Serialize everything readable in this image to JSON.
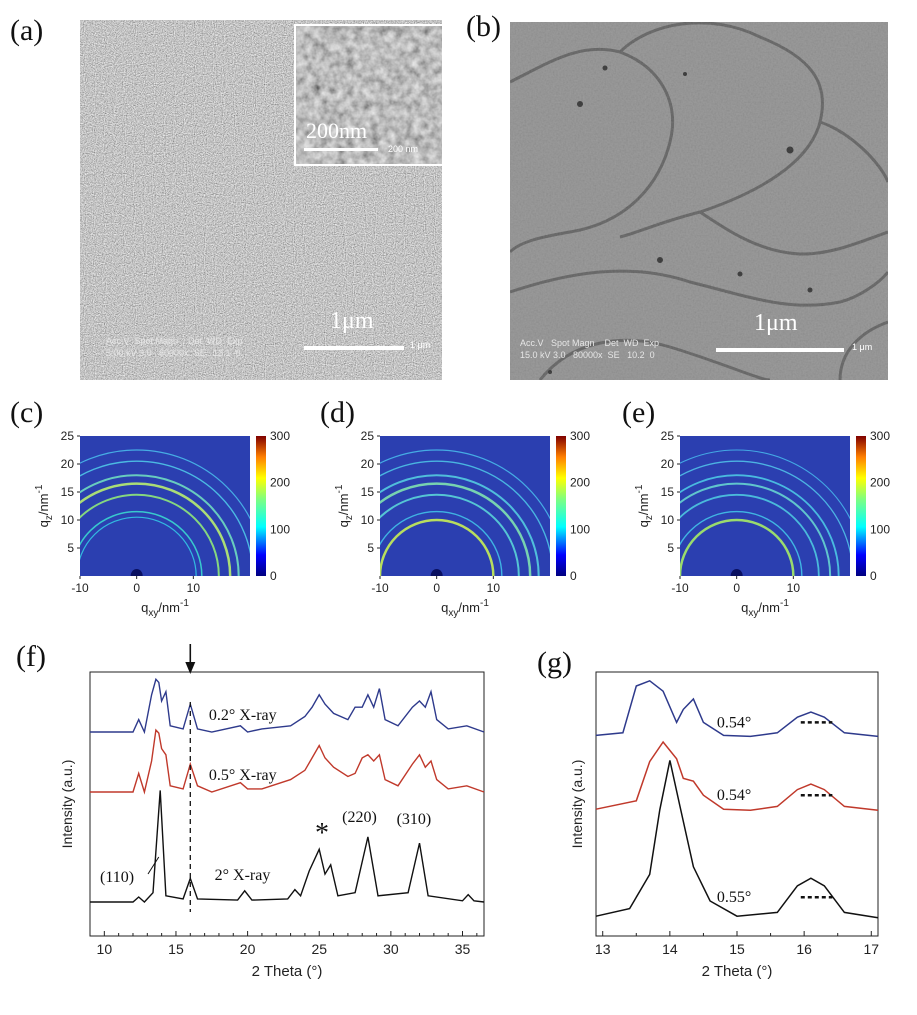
{
  "panels": {
    "a": {
      "letter": "(a)",
      "info_line1": "Acc.V  Spot Magn    Det  WD  Exp",
      "info_line2": "5.00 kV 3.0   60000x  SE   13.1  0",
      "scale_label": "1μm",
      "small_scale": "1 μm",
      "inset_scale_label": "200nm",
      "inset_small_scale": "200 nm"
    },
    "b": {
      "letter": "(b)",
      "info_line1": "Acc.V   Spot Magn    Det  WD  Exp",
      "info_line2": "15.0 kV 3.0   80000x  SE   10.2  0",
      "scale_label": "1μm",
      "small_scale": "1 μm"
    },
    "c": {
      "letter": "(c)"
    },
    "d": {
      "letter": "(d)"
    },
    "e": {
      "letter": "(e)"
    },
    "f": {
      "letter": "(f)"
    },
    "g": {
      "letter": "(g)"
    }
  },
  "gixrd": {
    "ylabel_main": "q",
    "ylabel_sub": "z",
    "xlabel_main": "q",
    "xlabel_sub": "xy",
    "unit": "/nm",
    "unit_sup": "-1",
    "y_ticks": [
      "5",
      "10",
      "15",
      "20",
      "25"
    ],
    "x_ticks": [
      "-10",
      "0",
      "10"
    ],
    "colorbar_ticks": [
      "0",
      "100",
      "200",
      "300"
    ]
  },
  "chart_data": [
    {
      "type": "line",
      "panel": "f",
      "xlabel": "2 Theta (°)",
      "ylabel": "Intensity (a.u.)",
      "xlim": [
        9,
        36.5
      ],
      "x_ticks": [
        10,
        15,
        20,
        25,
        30,
        35
      ],
      "annotations": {
        "dashed_line_x": 16.0,
        "peak_110": "(110)",
        "peak_220": "(220)",
        "peak_310": "(310)",
        "star": "*"
      },
      "series": [
        {
          "name": "0.2°  X-ray",
          "color": "#2e3a8c",
          "x": [
            9,
            12,
            12.4,
            12.8,
            13.3,
            13.6,
            13.8,
            14.0,
            14.3,
            14.6,
            15.5,
            16.0,
            16.5,
            17.5,
            19.5,
            20,
            21,
            23,
            24,
            24.5,
            25.0,
            25.4,
            26,
            27,
            27.5,
            28.0,
            28.4,
            28.8,
            29.2,
            29.6,
            30.5,
            31.5,
            32.0,
            32.4,
            32.8,
            33.2,
            34,
            35.3,
            36.5
          ],
          "y": [
            0,
            0,
            0.2,
            0,
            0.6,
            0.85,
            0.8,
            0.5,
            0.65,
            0.1,
            0.05,
            0.45,
            0.05,
            0,
            0.1,
            0,
            0.05,
            0.1,
            0.25,
            0.4,
            0.6,
            0.45,
            0.3,
            0.2,
            0.4,
            0.4,
            0.6,
            0.4,
            0.7,
            0.2,
            0.1,
            0.4,
            0.5,
            0.4,
            0.65,
            0.2,
            0.05,
            0.1,
            0
          ]
        },
        {
          "name": "0.5°  X-ray",
          "color": "#c0392b",
          "x": [
            9,
            12,
            12.4,
            12.8,
            13.3,
            13.6,
            13.8,
            14.0,
            14.3,
            14.6,
            15.5,
            16.0,
            16.5,
            17.5,
            19.5,
            20,
            21,
            23,
            24,
            24.5,
            25.0,
            25.4,
            26,
            27,
            27.5,
            28.0,
            28.4,
            28.8,
            29.2,
            29.6,
            30.5,
            31.5,
            32.0,
            32.4,
            32.8,
            33.2,
            34,
            35.3,
            36.5
          ],
          "y": [
            0,
            0,
            0.3,
            0,
            0.5,
            1.0,
            0.95,
            0.7,
            0.6,
            0.1,
            0.05,
            0.45,
            0.1,
            0,
            0.15,
            0.05,
            0.05,
            0.2,
            0.35,
            0.55,
            0.75,
            0.55,
            0.4,
            0.25,
            0.3,
            0.55,
            0.6,
            0.5,
            0.6,
            0.2,
            0.1,
            0.45,
            0.6,
            0.4,
            0.5,
            0.2,
            0.05,
            0.1,
            0
          ]
        },
        {
          "name": "2°  X-ray",
          "color": "#111111",
          "x": [
            9,
            12,
            12.4,
            12.8,
            13.4,
            13.9,
            14.3,
            15.5,
            16.0,
            16.5,
            19.3,
            19.8,
            20.3,
            22.8,
            23.3,
            23.7,
            24.3,
            25.0,
            25.4,
            25.8,
            26.3,
            27.5,
            28.4,
            29.1,
            31.2,
            32.0,
            32.6,
            35.0,
            35.4,
            35.8,
            36.5
          ],
          "y": [
            0,
            0,
            0.08,
            0,
            0.15,
            1.8,
            0.1,
            0.05,
            0.38,
            0.05,
            0.03,
            0.18,
            0.03,
            0.05,
            0.2,
            0.1,
            0.5,
            0.85,
            0.45,
            0.6,
            0.1,
            0.15,
            1.05,
            0.1,
            0.15,
            0.95,
            0.1,
            0.02,
            0.12,
            0.02,
            0
          ]
        }
      ]
    },
    {
      "type": "line",
      "panel": "g",
      "xlabel": "2 Theta (°)",
      "ylabel": "Intensity (a.u.)",
      "xlim": [
        12.9,
        17.1
      ],
      "x_ticks": [
        13,
        14,
        15,
        16,
        17
      ],
      "series": [
        {
          "name": "0.2°",
          "color": "#2e3a8c",
          "fwhm_label": "0.54°",
          "x": [
            12.9,
            13.3,
            13.5,
            13.7,
            13.9,
            14.1,
            14.2,
            14.35,
            14.5,
            14.8,
            15.2,
            15.6,
            15.9,
            16.1,
            16.3,
            16.6,
            17.1
          ],
          "y": [
            0.05,
            0.1,
            1.0,
            1.1,
            0.9,
            0.3,
            0.55,
            0.75,
            0.3,
            0.05,
            0.03,
            0.1,
            0.4,
            0.5,
            0.4,
            0.1,
            0.03
          ]
        },
        {
          "name": "0.5°",
          "color": "#c0392b",
          "fwhm_label": "0.54°",
          "x": [
            12.9,
            13.5,
            13.7,
            13.9,
            14.1,
            14.2,
            14.35,
            14.5,
            14.8,
            15.2,
            15.6,
            15.9,
            16.1,
            16.3,
            16.6,
            17.1
          ],
          "y": [
            0.05,
            0.2,
            0.9,
            1.25,
            0.95,
            0.6,
            0.55,
            0.3,
            0.05,
            0.03,
            0.1,
            0.4,
            0.5,
            0.4,
            0.1,
            0.03
          ]
        },
        {
          "name": "2°",
          "color": "#111111",
          "fwhm_label": "0.55°",
          "x": [
            12.9,
            13.4,
            13.7,
            13.85,
            14.0,
            14.15,
            14.35,
            14.6,
            15.0,
            15.6,
            15.9,
            16.1,
            16.3,
            16.6,
            17.1
          ],
          "y": [
            0.05,
            0.15,
            0.6,
            1.45,
            2.1,
            1.5,
            0.7,
            0.25,
            0.05,
            0.1,
            0.45,
            0.55,
            0.45,
            0.1,
            0.03
          ]
        }
      ]
    }
  ]
}
